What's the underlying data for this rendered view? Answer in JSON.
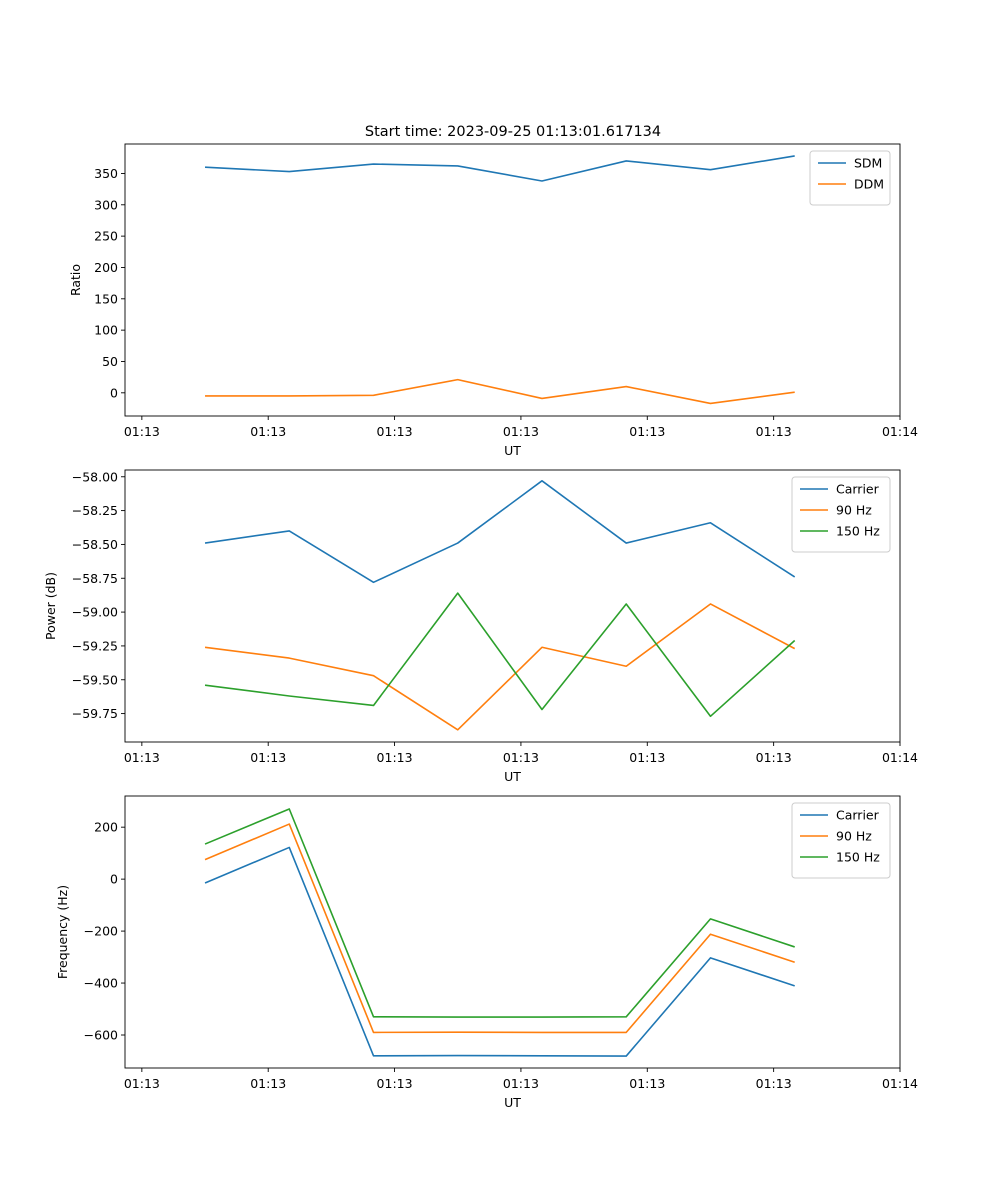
{
  "figure": {
    "title": "Start time: 2023-09-25 01:13:01.617134"
  },
  "chart_data": [
    {
      "type": "line",
      "title": "Start time: 2023-09-25 01:13:01.617134",
      "xlabel": "UT",
      "ylabel": "Ratio",
      "x": [
        0,
        1,
        2,
        3,
        4,
        5,
        6,
        7
      ],
      "x_ticks": [
        -0.75,
        0.75,
        2.25,
        3.75,
        5.25,
        6.75,
        8.25
      ],
      "x_tick_labels": [
        "01:13",
        "01:13",
        "01:13",
        "01:13",
        "01:13",
        "01:13",
        "01:14"
      ],
      "xlim": [
        -0.95,
        8.25
      ],
      "ylim": [
        -37,
        397
      ],
      "y_ticks": [
        0,
        50,
        100,
        150,
        200,
        250,
        300,
        350
      ],
      "y_tick_labels": [
        "0",
        "50",
        "100",
        "150",
        "200",
        "250",
        "300",
        "350"
      ],
      "legend_loc": "top-right",
      "series": [
        {
          "name": "SDM",
          "color": "#1f77b4",
          "values": [
            360,
            353,
            365,
            362,
            338,
            370,
            356,
            378
          ]
        },
        {
          "name": "DDM",
          "color": "#ff7f0e",
          "values": [
            -5,
            -5,
            -4,
            21,
            -9,
            10,
            -17,
            1
          ]
        }
      ]
    },
    {
      "type": "line",
      "title": "",
      "xlabel": "UT",
      "ylabel": "Power (dB)",
      "x": [
        0,
        1,
        2,
        3,
        4,
        5,
        6,
        7
      ],
      "x_ticks": [
        -0.75,
        0.75,
        2.25,
        3.75,
        5.25,
        6.75,
        8.25
      ],
      "x_tick_labels": [
        "01:13",
        "01:13",
        "01:13",
        "01:13",
        "01:13",
        "01:13",
        "01:14"
      ],
      "xlim": [
        -0.95,
        8.25
      ],
      "ylim": [
        -59.96,
        -57.95
      ],
      "y_ticks": [
        -58.0,
        -58.25,
        -58.5,
        -58.75,
        -59.0,
        -59.25,
        -59.5,
        -59.75
      ],
      "y_tick_labels": [
        "−58.00",
        "−58.25",
        "−58.50",
        "−58.75",
        "−59.00",
        "−59.25",
        "−59.50",
        "−59.75"
      ],
      "legend_loc": "top-right",
      "series": [
        {
          "name": "Carrier",
          "color": "#1f77b4",
          "values": [
            -58.49,
            -58.4,
            -58.78,
            -58.49,
            -58.03,
            -58.49,
            -58.34,
            -58.74
          ]
        },
        {
          "name": "90 Hz",
          "color": "#ff7f0e",
          "values": [
            -59.26,
            -59.34,
            -59.47,
            -59.87,
            -59.26,
            -59.4,
            -58.94,
            -59.27
          ]
        },
        {
          "name": "150 Hz",
          "color": "#2ca02c",
          "values": [
            -59.54,
            -59.62,
            -59.69,
            -58.86,
            -59.72,
            -58.94,
            -59.77,
            -59.21
          ]
        }
      ]
    },
    {
      "type": "line",
      "title": "",
      "xlabel": "UT",
      "ylabel": "Frequency (Hz)",
      "x": [
        0,
        1,
        2,
        3,
        4,
        5,
        6,
        7
      ],
      "x_ticks": [
        -0.75,
        0.75,
        2.25,
        3.75,
        5.25,
        6.75,
        8.25
      ],
      "x_tick_labels": [
        "01:13",
        "01:13",
        "01:13",
        "01:13",
        "01:13",
        "01:13",
        "01:14"
      ],
      "xlim": [
        -0.95,
        8.25
      ],
      "ylim": [
        -727,
        320
      ],
      "y_ticks": [
        200,
        0,
        -200,
        -400,
        -600
      ],
      "y_tick_labels": [
        "200",
        "0",
        "−200",
        "−400",
        "−600"
      ],
      "legend_loc": "top-right",
      "series": [
        {
          "name": "Carrier",
          "color": "#1f77b4",
          "values": [
            -15,
            122,
            -680,
            -679,
            -680,
            -681,
            -303,
            -411
          ]
        },
        {
          "name": "90 Hz",
          "color": "#ff7f0e",
          "values": [
            75,
            212,
            -590,
            -589,
            -590,
            -590,
            -212,
            -320
          ]
        },
        {
          "name": "150 Hz",
          "color": "#2ca02c",
          "values": [
            135,
            270,
            -530,
            -531,
            -531,
            -530,
            -153,
            -261
          ]
        }
      ]
    }
  ]
}
